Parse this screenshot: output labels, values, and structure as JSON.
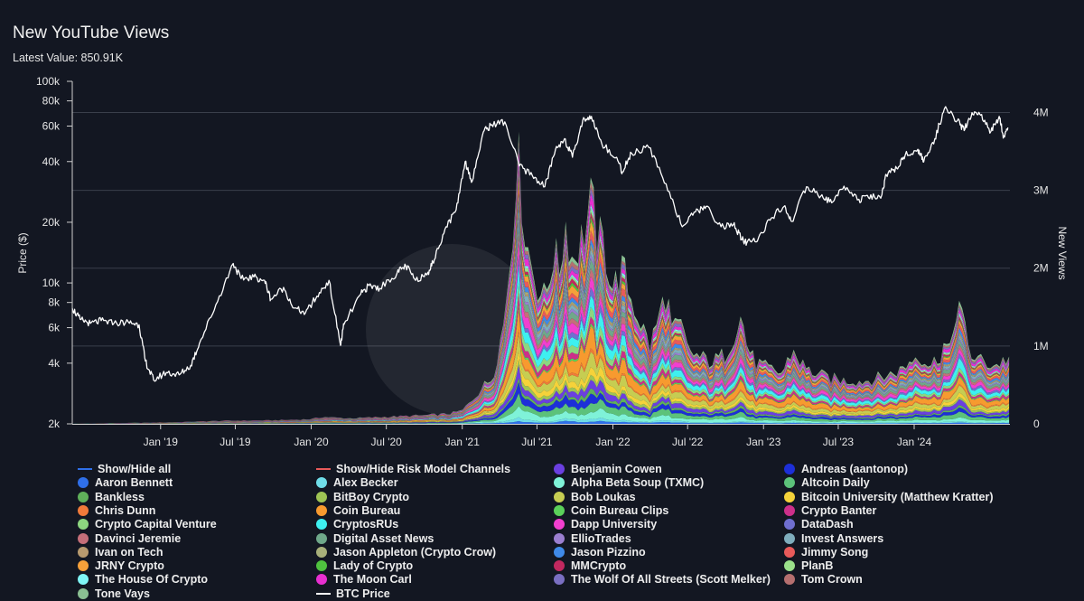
{
  "header": {
    "title": "New YouTube Views",
    "latest_value": "Latest Value: 850.91K"
  },
  "colors": {
    "background": "#131722",
    "grid": "#3a3f4b",
    "btc_line": "#ffffff"
  },
  "chart_data": {
    "type": "area",
    "title": "New YouTube Views",
    "subtitle": "Latest Value: 850.91K",
    "ylabel": "Price ($)",
    "y2label": "New Views",
    "x_tick_labels": [
      "Jan '19",
      "Jul '19",
      "Jan '20",
      "Jul '20",
      "Jan '21",
      "Jul '21",
      "Jan '22",
      "Jul '22",
      "Jan '23",
      "Jul '23",
      "Jan '24"
    ],
    "xlim": [
      "2018-06-01",
      "2024-08-20"
    ],
    "y_scale": "log",
    "ylim": [
      2000,
      100000
    ],
    "y_tick_labels": [
      "2k",
      "4k",
      "6k",
      "8k",
      "10k",
      "20k",
      "40k",
      "60k",
      "80k",
      "100k"
    ],
    "y_tick_values": [
      2000,
      4000,
      6000,
      8000,
      10000,
      20000,
      40000,
      60000,
      80000,
      100000
    ],
    "y2lim": [
      0,
      4400000
    ],
    "y2_tick_labels": [
      "0",
      "1M",
      "2M",
      "3M",
      "4M"
    ],
    "y2_tick_values": [
      0,
      1000000,
      2000000,
      3000000,
      4000000
    ],
    "grid": true,
    "legend_position": "bottom",
    "btc_price": {
      "name": "BTC Price",
      "dates": [
        "2018-06-01",
        "2018-06-20",
        "2018-07-15",
        "2018-08-10",
        "2018-09-10",
        "2018-10-15",
        "2018-11-10",
        "2018-11-25",
        "2018-12-15",
        "2019-01-15",
        "2019-02-15",
        "2019-03-15",
        "2019-04-05",
        "2019-05-15",
        "2019-06-26",
        "2019-07-15",
        "2019-08-15",
        "2019-09-10",
        "2019-09-25",
        "2019-10-26",
        "2019-11-20",
        "2019-12-18",
        "2020-01-15",
        "2020-02-13",
        "2020-03-12",
        "2020-03-20",
        "2020-04-30",
        "2020-05-20",
        "2020-06-15",
        "2020-07-27",
        "2020-08-17",
        "2020-09-10",
        "2020-10-10",
        "2020-10-25",
        "2020-11-20",
        "2020-12-17",
        "2021-01-08",
        "2021-01-25",
        "2021-02-21",
        "2021-03-13",
        "2021-04-14",
        "2021-05-19",
        "2021-06-20",
        "2021-07-20",
        "2021-08-15",
        "2021-09-06",
        "2021-09-25",
        "2021-10-20",
        "2021-11-10",
        "2021-12-05",
        "2022-01-10",
        "2022-01-24",
        "2022-02-15",
        "2022-03-29",
        "2022-05-10",
        "2022-06-18",
        "2022-07-20",
        "2022-08-15",
        "2022-09-20",
        "2022-10-20",
        "2022-11-09",
        "2022-11-21",
        "2022-12-20",
        "2023-01-20",
        "2023-02-20",
        "2023-03-10",
        "2023-04-15",
        "2023-05-20",
        "2023-06-15",
        "2023-07-15",
        "2023-08-20",
        "2023-09-15",
        "2023-10-15",
        "2023-10-25",
        "2023-11-20",
        "2023-12-10",
        "2024-01-10",
        "2024-01-24",
        "2024-02-20",
        "2024-03-14",
        "2024-04-15",
        "2024-05-01",
        "2024-05-20",
        "2024-06-10",
        "2024-07-05",
        "2024-07-25",
        "2024-08-05",
        "2024-08-15"
      ],
      "values": [
        7500,
        6600,
        6300,
        6500,
        6300,
        6400,
        6200,
        4100,
        3300,
        3600,
        3500,
        3900,
        5000,
        7800,
        12500,
        10500,
        10700,
        10300,
        8300,
        9500,
        7500,
        7100,
        8600,
        10300,
        4900,
        6200,
        8800,
        9700,
        9400,
        11200,
        12200,
        10300,
        11300,
        13000,
        18500,
        23000,
        40000,
        32000,
        56000,
        61000,
        63000,
        38000,
        34000,
        30000,
        46000,
        52000,
        42000,
        64000,
        67000,
        49000,
        42000,
        35500,
        44000,
        47000,
        31000,
        19000,
        22500,
        24000,
        19000,
        19500,
        16500,
        15700,
        16800,
        21000,
        24000,
        20200,
        30000,
        27000,
        25000,
        30200,
        26000,
        26200,
        27500,
        34500,
        37000,
        43000,
        46000,
        39800,
        52000,
        73000,
        64000,
        57000,
        70000,
        68000,
        56500,
        67000,
        53000,
        59000
      ]
    },
    "series": [
      {
        "name": "Aaron Bennett",
        "color": "#2f6fe8"
      },
      {
        "name": "Alex Becker",
        "color": "#6fdde8"
      },
      {
        "name": "Alpha Beta Soup (TXMC)",
        "color": "#7ff2d8"
      },
      {
        "name": "Altcoin Daily",
        "color": "#5cc27a"
      },
      {
        "name": "Andreas (aantonop)",
        "color": "#1d2fd8"
      },
      {
        "name": "Bankless",
        "color": "#5fb05a"
      },
      {
        "name": "Benjamin Cowen",
        "color": "#6b3fe0"
      },
      {
        "name": "BitBoy Crypto",
        "color": "#9fc454"
      },
      {
        "name": "Bitcoin University (Matthew Kratter)",
        "color": "#f5d23a"
      },
      {
        "name": "Bob Loukas",
        "color": "#c6cd52"
      },
      {
        "name": "Chris Dunn",
        "color": "#f07a3a"
      },
      {
        "name": "Coin Bureau",
        "color": "#f79a2f"
      },
      {
        "name": "Coin Bureau Clips",
        "color": "#5bd05a"
      },
      {
        "name": "Crypto Banter",
        "color": "#cc2f8a"
      },
      {
        "name": "Crypto Capital Venture",
        "color": "#8dd680"
      },
      {
        "name": "CryptosRUs",
        "color": "#3ef0f0"
      },
      {
        "name": "DataDash",
        "color": "#6f6fd0"
      },
      {
        "name": "Dapp University",
        "color": "#f23fcf"
      },
      {
        "name": "Davinci Jeremie",
        "color": "#c56f79"
      },
      {
        "name": "Digital Asset News",
        "color": "#6fa88a"
      },
      {
        "name": "EllioTrades",
        "color": "#9b7fd0"
      },
      {
        "name": "Invest Answers",
        "color": "#7faebd"
      },
      {
        "name": "Ivan on Tech",
        "color": "#b79a6f"
      },
      {
        "name": "Jason Appleton (Crypto Crow)",
        "color": "#a8b07a"
      },
      {
        "name": "Jason Pizzino",
        "color": "#3f8ae8"
      },
      {
        "name": "Jimmy Song",
        "color": "#e85a5a"
      },
      {
        "name": "JRNY Crypto",
        "color": "#f5a03a"
      },
      {
        "name": "Lady of Crypto",
        "color": "#4fc23f"
      },
      {
        "name": "MMCrypto",
        "color": "#c2285f"
      },
      {
        "name": "PlanB",
        "color": "#9ae08a"
      },
      {
        "name": "The House Of Crypto",
        "color": "#7ff5f5"
      },
      {
        "name": "The Moon Carl",
        "color": "#e82fd0"
      },
      {
        "name": "The Wolf Of All Streets (Scott Melker)",
        "color": "#7a6fc2"
      },
      {
        "name": "Tom Crown",
        "color": "#b56f6f"
      },
      {
        "name": "Tone Vays",
        "color": "#8abf92"
      }
    ],
    "total_views": {
      "dates": [
        "2018-06-01",
        "2018-10-01",
        "2019-02-01",
        "2019-06-01",
        "2019-10-01",
        "2020-01-01",
        "2020-01-20",
        "2020-01-22",
        "2020-01-25",
        "2020-04-01",
        "2020-07-01",
        "2020-10-01",
        "2020-12-01",
        "2021-01-01",
        "2021-01-20",
        "2021-02-15",
        "2021-03-15",
        "2021-04-10",
        "2021-04-15",
        "2021-04-20",
        "2021-05-05",
        "2021-05-12",
        "2021-05-20",
        "2021-06-01",
        "2021-06-15",
        "2021-07-01",
        "2021-07-20",
        "2021-08-10",
        "2021-08-25",
        "2021-09-08",
        "2021-09-25",
        "2021-10-10",
        "2021-10-25",
        "2021-11-10",
        "2021-11-25",
        "2021-12-10",
        "2022-01-01",
        "2022-01-25",
        "2022-02-15",
        "2022-03-10",
        "2022-04-01",
        "2022-05-10",
        "2022-05-25",
        "2022-06-18",
        "2022-07-01",
        "2022-08-01",
        "2022-09-01",
        "2022-10-01",
        "2022-11-09",
        "2022-11-20",
        "2022-12-10",
        "2023-01-15",
        "2023-02-15",
        "2023-03-12",
        "2023-04-15",
        "2023-06-01",
        "2023-07-15",
        "2023-09-01",
        "2023-10-25",
        "2023-12-01",
        "2024-01-10",
        "2024-02-10",
        "2024-03-05",
        "2024-03-14",
        "2024-03-28",
        "2024-04-15",
        "2024-05-15",
        "2024-06-15",
        "2024-07-15",
        "2024-08-15"
      ],
      "values": [
        0,
        10000,
        20000,
        40000,
        45000,
        60000,
        80000,
        320000,
        90000,
        70000,
        90000,
        110000,
        130000,
        170000,
        280000,
        450000,
        600000,
        1250000,
        1650000,
        1700000,
        2700000,
        3400000,
        3300000,
        2500000,
        2100000,
        1800000,
        1600000,
        2200000,
        2000000,
        2600000,
        2100000,
        2300000,
        2500000,
        2900000,
        2400000,
        2300000,
        1750000,
        2000000,
        1600000,
        1300000,
        1000000,
        1700000,
        1200000,
        1250000,
        950000,
        850000,
        800000,
        900000,
        1400000,
        1050000,
        800000,
        700000,
        650000,
        950000,
        700000,
        600000,
        560000,
        550000,
        620000,
        700000,
        900000,
        750000,
        900000,
        1050000,
        900000,
        1650000,
        900000,
        800000,
        750000,
        850000
      ]
    }
  },
  "legend": {
    "items": [
      {
        "label": "Show/Hide all",
        "kind": "line",
        "color": "#2f6fe8",
        "col": 0,
        "row": 0
      },
      {
        "label": "Show/Hide Risk Model Channels",
        "kind": "line",
        "color": "#e85a5a",
        "col": 1,
        "row": 0
      },
      {
        "label": "Benjamin Cowen",
        "kind": "dot",
        "color": "#6b3fe0",
        "col": 2,
        "row": 0
      },
      {
        "label": "Andreas (aantonop)",
        "kind": "dot",
        "color": "#1d2fd8",
        "col": 3,
        "row": 0
      },
      {
        "label": "Aaron Bennett",
        "kind": "dot",
        "color": "#2f6fe8",
        "col": 0,
        "row": 1
      },
      {
        "label": "Alex Becker",
        "kind": "dot",
        "color": "#6fdde8",
        "col": 1,
        "row": 1
      },
      {
        "label": "Alpha Beta Soup (TXMC)",
        "kind": "dot",
        "color": "#7ff2d8",
        "col": 2,
        "row": 1
      },
      {
        "label": "Altcoin Daily",
        "kind": "dot",
        "color": "#5cc27a",
        "col": 3,
        "row": 1
      },
      {
        "label": "Bankless",
        "kind": "dot",
        "color": "#5fb05a",
        "col": 0,
        "row": 2
      },
      {
        "label": "BitBoy Crypto",
        "kind": "dot",
        "color": "#9fc454",
        "col": 1,
        "row": 2
      },
      {
        "label": "Bob Loukas",
        "kind": "dot",
        "color": "#c6cd52",
        "col": 2,
        "row": 2
      },
      {
        "label": "Bitcoin University (Matthew Kratter)",
        "kind": "dot",
        "color": "#f5d23a",
        "col": 3,
        "row": 2
      },
      {
        "label": "Chris Dunn",
        "kind": "dot",
        "color": "#f07a3a",
        "col": 0,
        "row": 3
      },
      {
        "label": "Coin Bureau",
        "kind": "dot",
        "color": "#f79a2f",
        "col": 1,
        "row": 3
      },
      {
        "label": "Coin Bureau Clips",
        "kind": "dot",
        "color": "#5bd05a",
        "col": 2,
        "row": 3
      },
      {
        "label": "Crypto Banter",
        "kind": "dot",
        "color": "#cc2f8a",
        "col": 3,
        "row": 3
      },
      {
        "label": "Crypto Capital Venture",
        "kind": "dot",
        "color": "#8dd680",
        "col": 0,
        "row": 4
      },
      {
        "label": "CryptosRUs",
        "kind": "dot",
        "color": "#3ef0f0",
        "col": 1,
        "row": 4
      },
      {
        "label": "Dapp University",
        "kind": "dot",
        "color": "#f23fcf",
        "col": 2,
        "row": 4
      },
      {
        "label": "DataDash",
        "kind": "dot",
        "color": "#6f6fd0",
        "col": 3,
        "row": 4
      },
      {
        "label": "Davinci Jeremie",
        "kind": "dot",
        "color": "#c56f79",
        "col": 0,
        "row": 5
      },
      {
        "label": "Digital Asset News",
        "kind": "dot",
        "color": "#6fa88a",
        "col": 1,
        "row": 5
      },
      {
        "label": "EllioTrades",
        "kind": "dot",
        "color": "#9b7fd0",
        "col": 2,
        "row": 5
      },
      {
        "label": "Invest Answers",
        "kind": "dot",
        "color": "#7faebd",
        "col": 3,
        "row": 5
      },
      {
        "label": "Ivan on Tech",
        "kind": "dot",
        "color": "#b79a6f",
        "col": 0,
        "row": 6
      },
      {
        "label": "Jason Appleton (Crypto Crow)",
        "kind": "dot",
        "color": "#a8b07a",
        "col": 1,
        "row": 6
      },
      {
        "label": "Jason Pizzino",
        "kind": "dot",
        "color": "#3f8ae8",
        "col": 2,
        "row": 6
      },
      {
        "label": "Jimmy Song",
        "kind": "dot",
        "color": "#e85a5a",
        "col": 3,
        "row": 6
      },
      {
        "label": "JRNY Crypto",
        "kind": "dot",
        "color": "#f5a03a",
        "col": 0,
        "row": 7
      },
      {
        "label": "Lady of Crypto",
        "kind": "dot",
        "color": "#4fc23f",
        "col": 1,
        "row": 7
      },
      {
        "label": "MMCrypto",
        "kind": "dot",
        "color": "#c2285f",
        "col": 2,
        "row": 7
      },
      {
        "label": "PlanB",
        "kind": "dot",
        "color": "#9ae08a",
        "col": 3,
        "row": 7
      },
      {
        "label": "The House Of Crypto",
        "kind": "dot",
        "color": "#7ff5f5",
        "col": 0,
        "row": 8
      },
      {
        "label": "The Moon Carl",
        "kind": "dot",
        "color": "#e82fd0",
        "col": 1,
        "row": 8
      },
      {
        "label": "The Wolf Of All Streets (Scott Melker)",
        "kind": "dot",
        "color": "#7a6fc2",
        "col": 2,
        "row": 8
      },
      {
        "label": "Tom Crown",
        "kind": "dot",
        "color": "#b56f6f",
        "col": 3,
        "row": 8
      },
      {
        "label": "Tone Vays",
        "kind": "dot",
        "color": "#8abf92",
        "col": 0,
        "row": 9
      },
      {
        "label": "BTC Price",
        "kind": "line",
        "color": "#ffffff",
        "col": 1,
        "row": 9
      }
    ]
  }
}
